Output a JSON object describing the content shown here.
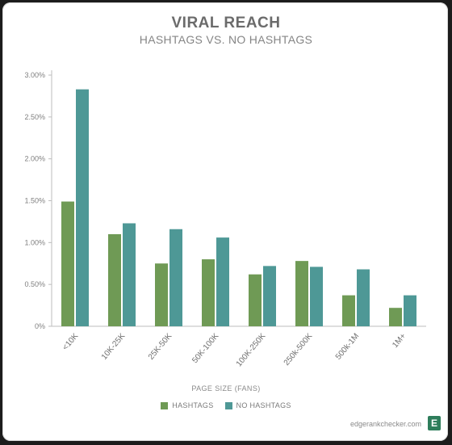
{
  "chart_data": {
    "type": "bar",
    "title": "VIRAL REACH",
    "subtitle": "HASHTAGS VS. NO HASHTAGS",
    "xlabel": "PAGE SIZE (FANS)",
    "ylabel": "",
    "ylim": [
      0,
      3.0
    ],
    "yticks": [
      "0%",
      "0.50%",
      "1.00%",
      "1.50%",
      "2.00%",
      "2.50%",
      "3.00%"
    ],
    "categories": [
      "<10K",
      "10K-25K",
      "25K-50K",
      "50K-100K",
      "100K-250K",
      "250k-500K",
      "500k-1M",
      "1M+"
    ],
    "series": [
      {
        "name": "HASHTAGS",
        "color": "#6f9a55",
        "values": [
          1.49,
          1.1,
          0.75,
          0.8,
          0.62,
          0.78,
          0.37,
          0.22
        ]
      },
      {
        "name": "NO HASHTAGS",
        "color": "#4e9896",
        "values": [
          2.83,
          1.23,
          1.16,
          1.06,
          0.72,
          0.71,
          0.68,
          0.37
        ]
      }
    ],
    "grid": false,
    "legend_position": "bottom"
  },
  "footer": {
    "site": "edgerankchecker.com",
    "logo_letter": "E"
  }
}
